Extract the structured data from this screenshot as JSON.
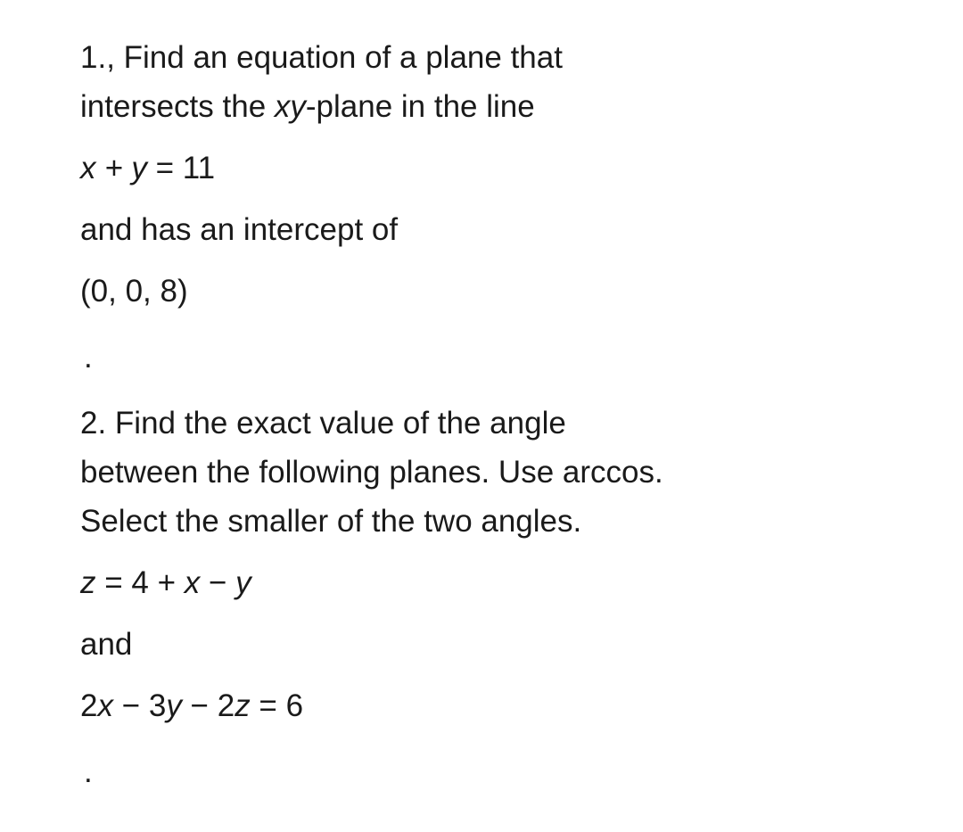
{
  "problem1": {
    "line1_a": "1., Find an equation of a plane that",
    "line2_a": "intersects the ",
    "line2_italic": "xy",
    "line2_b": "-plane in the line",
    "eq1_italic": "x + y",
    "eq1_rest": " = 11",
    "line3": "and has an intercept of",
    "point": "(0, 0, 8)",
    "dot": "."
  },
  "problem2": {
    "line1": "2. Find the exact value of the angle",
    "line2": "between the following planes. Use arccos.",
    "line3": "Select the smaller of the two angles.",
    "eq1_a": "z",
    "eq1_b": " = 4 + ",
    "eq1_c": "x",
    "eq1_d": " − ",
    "eq1_e": "y",
    "and": "and",
    "eq2_a": "2",
    "eq2_b": "x",
    "eq2_c": " − 3",
    "eq2_d": "y",
    "eq2_e": " − 2",
    "eq2_f": "z",
    "eq2_g": " = 6",
    "dot": "."
  }
}
